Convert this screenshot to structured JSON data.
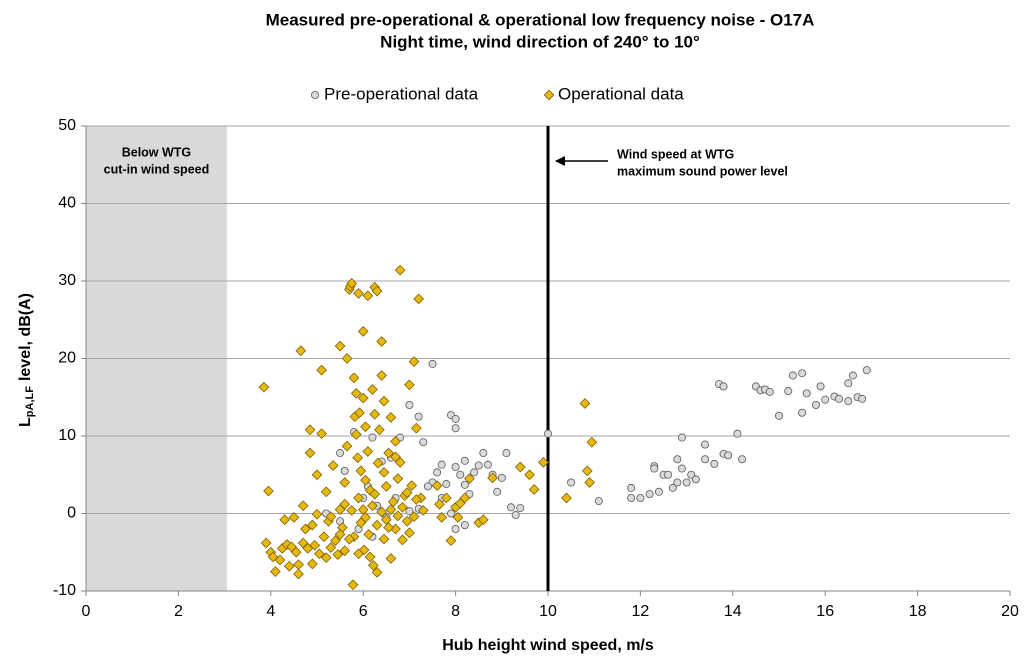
{
  "chart_data": {
    "type": "scatter",
    "title": [
      "Measured pre-operational & operational low frequency noise - O17A",
      "Night time, wind direction of 240° to 10°"
    ],
    "xlabel": "Hub height wind speed, m/s",
    "ylabel": {
      "main": "L",
      "sub": "pA,LF",
      "rest": "level, dB(A)"
    },
    "xlim": [
      0,
      20
    ],
    "ylim": [
      -10,
      50
    ],
    "xticks": [
      0,
      2,
      4,
      6,
      8,
      10,
      12,
      14,
      16,
      18,
      20
    ],
    "yticks": [
      -10,
      0,
      10,
      20,
      30,
      40,
      50
    ],
    "grid": true,
    "legend": "top",
    "shaded_region": {
      "xrange": [
        0,
        3.05
      ],
      "color": "#d9d9d9",
      "label": [
        "Below WTG",
        "cut-in wind speed"
      ]
    },
    "vline": {
      "x": 10,
      "color": "#000000",
      "label": [
        "Wind speed at WTG",
        "maximum sound power level"
      ]
    },
    "series": [
      {
        "name": "Pre-operational data",
        "color": "#d9d9d9",
        "marker": "circle",
        "x": [
          5.8,
          5.5,
          5.6,
          6.2,
          6.4,
          6.6,
          6.8,
          7.0,
          7.2,
          7.3,
          7.5,
          7.5,
          7.6,
          7.7,
          7.8,
          7.9,
          8.0,
          8.0,
          8.0,
          8.1,
          8.2,
          8.2,
          8.3,
          8.4,
          8.5,
          8.6,
          8.7,
          8.8,
          8.9,
          9.0,
          9.1,
          9.2,
          9.4,
          9.3,
          10.0,
          10.5,
          11.1,
          11.8,
          11.8,
          12.0,
          12.2,
          12.3,
          12.3,
          12.4,
          12.5,
          12.6,
          12.7,
          12.8,
          12.8,
          12.9,
          12.9,
          13.0,
          13.1,
          13.2,
          13.4,
          13.4,
          13.6,
          13.7,
          13.8,
          13.8,
          13.9,
          14.1,
          14.2,
          14.5,
          14.6,
          14.7,
          14.8,
          15.0,
          15.2,
          15.3,
          15.5,
          15.5,
          15.6,
          15.8,
          15.9,
          16.0,
          16.2,
          16.3,
          16.5,
          16.5,
          16.6,
          16.7,
          16.8,
          16.9,
          5.2,
          5.5,
          6.0,
          6.1,
          6.3,
          6.5,
          6.7,
          7.0,
          7.2,
          7.4,
          7.7,
          8.0,
          7.9,
          8.2,
          5.9,
          6.2
        ],
        "values": [
          10.5,
          7.8,
          5.5,
          9.8,
          6.7,
          7.2,
          9.8,
          14,
          12.5,
          9.2,
          19.3,
          4,
          5.3,
          6.3,
          3.8,
          12.7,
          12.2,
          11,
          6,
          5,
          6.8,
          3.7,
          2.5,
          5.3,
          6.2,
          7.8,
          6.3,
          5,
          2.8,
          4.6,
          7.8,
          0.8,
          0.7,
          -0.2,
          10.3,
          4,
          1.6,
          3.3,
          2,
          2,
          2.5,
          6.1,
          5.8,
          2.8,
          5,
          5,
          3.3,
          4,
          7,
          9.8,
          5.8,
          4,
          5,
          4.4,
          8.9,
          7,
          6.4,
          16.7,
          16.4,
          7.7,
          7.5,
          10.3,
          7,
          16.4,
          15.9,
          16,
          15.7,
          12.6,
          15.8,
          17.8,
          18.1,
          13,
          15.5,
          14,
          16.4,
          14.7,
          15.1,
          14.8,
          14.5,
          16.8,
          17.8,
          15,
          14.8,
          18.5,
          0,
          -1,
          2,
          3.5,
          1,
          -0.5,
          2,
          0.3,
          0.6,
          3.5,
          2,
          -2,
          0,
          -1.5,
          -2,
          -3
        ]
      },
      {
        "name": "Operational data",
        "color": "#e6b912",
        "marker": "diamond",
        "x": [
          3.85,
          3.9,
          3.95,
          4.0,
          4.05,
          4.1,
          4.2,
          4.25,
          4.3,
          4.35,
          4.4,
          4.45,
          4.5,
          4.55,
          4.6,
          4.6,
          4.65,
          4.7,
          4.7,
          4.75,
          4.8,
          4.85,
          4.85,
          4.9,
          4.95,
          5.0,
          5.0,
          5.05,
          5.1,
          5.1,
          5.15,
          5.2,
          5.25,
          5.3,
          5.35,
          5.4,
          5.45,
          5.5,
          5.5,
          5.55,
          5.6,
          5.6,
          5.65,
          5.65,
          5.7,
          5.72,
          5.75,
          5.75,
          5.78,
          5.8,
          5.8,
          5.82,
          5.85,
          5.85,
          5.88,
          5.9,
          5.9,
          5.92,
          5.95,
          5.95,
          6.0,
          6.0,
          6.0,
          6.02,
          6.05,
          6.05,
          6.1,
          6.1,
          6.12,
          6.15,
          6.2,
          6.2,
          6.22,
          6.25,
          6.25,
          6.3,
          6.3,
          6.32,
          6.35,
          6.4,
          6.4,
          6.4,
          6.45,
          6.45,
          6.5,
          6.5,
          6.55,
          6.6,
          6.6,
          6.65,
          6.7,
          6.7,
          6.75,
          6.8,
          6.8,
          6.85,
          6.85,
          6.9,
          6.95,
          7.0,
          7.05,
          7.1,
          7.1,
          7.15,
          7.2,
          7.25,
          7.3,
          7.6,
          7.65,
          7.7,
          7.8,
          7.9,
          8.0,
          8.05,
          8.1,
          8.2,
          8.3,
          8.5,
          8.6,
          8.8,
          9.4,
          9.6,
          9.7,
          9.9,
          10.4,
          10.8,
          10.85,
          10.9,
          10.95,
          5.3,
          5.6,
          5.9,
          6.3,
          6.15,
          6.55,
          6.75,
          7.0,
          5.7,
          5.5,
          4.9,
          5.2,
          6.45,
          6.7,
          6.05,
          6.25,
          6.6,
          6.95,
          7.15
        ],
        "values": [
          16.3,
          -3.8,
          2.9,
          -5,
          -5.6,
          -7.5,
          -6,
          -4.5,
          -0.8,
          -4,
          -6.8,
          -4.3,
          -0.5,
          -5,
          -7.8,
          -6.6,
          21,
          -3.8,
          1,
          -2,
          -4.5,
          7.8,
          10.8,
          -1.5,
          -4.1,
          -0.1,
          5,
          -5.2,
          18.5,
          10.3,
          -3,
          2.8,
          -1,
          -0.4,
          6.2,
          -3.5,
          -5.3,
          21.6,
          0.5,
          -1.8,
          4,
          -4.8,
          20,
          8.7,
          28.9,
          29.3,
          29.7,
          0.4,
          -9.2,
          17.5,
          -3,
          12.5,
          15.5,
          10.2,
          7.2,
          28.4,
          2,
          13,
          -1.2,
          5.5,
          23.5,
          14.9,
          0.5,
          -4.7,
          11.2,
          -0.5,
          28.1,
          8,
          -2.7,
          3,
          16,
          1,
          -6.7,
          29.2,
          12.8,
          28.7,
          -1.5,
          6.5,
          10.8,
          22.2,
          17.8,
          0.2,
          -3.3,
          14.5,
          3.5,
          -0.8,
          7.8,
          12.4,
          -5.8,
          1.5,
          9.3,
          -2,
          4.5,
          31.4,
          6.6,
          -3.4,
          0.8,
          2.3,
          -1,
          16.6,
          3.6,
          19.6,
          -0.4,
          11,
          27.7,
          2,
          0.4,
          3.6,
          1.2,
          -0.5,
          2,
          -3.5,
          0.8,
          -0.5,
          1.3,
          2,
          4.5,
          -1.2,
          -0.8,
          4.6,
          6,
          5,
          3.1,
          6.6,
          2,
          14.2,
          5.5,
          4,
          9.2,
          -4.4,
          1.2,
          -5.2,
          -7.6,
          -5.6,
          -1.8,
          -0.3,
          -2.5,
          -3.3,
          -2.7,
          -6.5,
          -5.7,
          5.3,
          7.3,
          4.3,
          2.5,
          0.5,
          2.7,
          1.8
        ]
      }
    ]
  }
}
